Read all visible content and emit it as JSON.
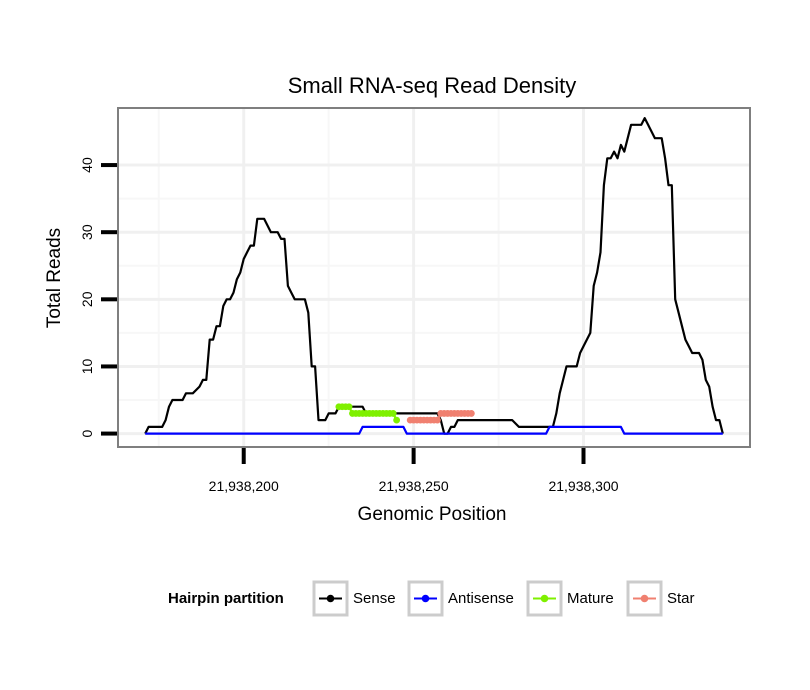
{
  "chart_data": {
    "type": "line",
    "title": "Small RNA-seq Read Density",
    "xlabel": "Genomic Position",
    "ylabel": "Total Reads",
    "xlim": [
      21938163,
      21938349
    ],
    "ylim": [
      -2,
      48.5
    ],
    "x_ticks": [
      {
        "value": 21938200,
        "label": "21,938,200"
      },
      {
        "value": 21938250,
        "label": "21,938,250"
      },
      {
        "value": 21938300,
        "label": "21,938,300"
      }
    ],
    "y_ticks": [
      {
        "value": 0,
        "label": "0"
      },
      {
        "value": 10,
        "label": "10"
      },
      {
        "value": 20,
        "label": "20"
      },
      {
        "value": 30,
        "label": "30"
      },
      {
        "value": 40,
        "label": "40"
      }
    ],
    "grid": true,
    "legend": {
      "title": "Hairpin partition",
      "position": "bottom"
    },
    "series": [
      {
        "name": "Sense",
        "color": "#000000",
        "marker": false,
        "points": [
          [
            21938171,
            0
          ],
          [
            21938172,
            1
          ],
          [
            21938176,
            1
          ],
          [
            21938177,
            2
          ],
          [
            21938178,
            4
          ],
          [
            21938179,
            5
          ],
          [
            21938182,
            5
          ],
          [
            21938183,
            6
          ],
          [
            21938185,
            6
          ],
          [
            21938187,
            7
          ],
          [
            21938188,
            8
          ],
          [
            21938189,
            8
          ],
          [
            21938190,
            14
          ],
          [
            21938191,
            14
          ],
          [
            21938192,
            16
          ],
          [
            21938193,
            16
          ],
          [
            21938194,
            19
          ],
          [
            21938195,
            20
          ],
          [
            21938196,
            20
          ],
          [
            21938197,
            21
          ],
          [
            21938198,
            23
          ],
          [
            21938199,
            24
          ],
          [
            21938200,
            26
          ],
          [
            21938201,
            27
          ],
          [
            21938202,
            28
          ],
          [
            21938203,
            28
          ],
          [
            21938204,
            32
          ],
          [
            21938206,
            32
          ],
          [
            21938207,
            31
          ],
          [
            21938208,
            30
          ],
          [
            21938210,
            30
          ],
          [
            21938211,
            29
          ],
          [
            21938212,
            29
          ],
          [
            21938213,
            22
          ],
          [
            21938214,
            21
          ],
          [
            21938215,
            20
          ],
          [
            21938218,
            20
          ],
          [
            21938219,
            18
          ],
          [
            21938220,
            10
          ],
          [
            21938221,
            10
          ],
          [
            21938222,
            2
          ],
          [
            21938224,
            2
          ],
          [
            21938225,
            3
          ],
          [
            21938227,
            3
          ],
          [
            21938228,
            4
          ],
          [
            21938235,
            4
          ],
          [
            21938236,
            3
          ],
          [
            21938257,
            3
          ],
          [
            21938258,
            2
          ],
          [
            21938259,
            0
          ],
          [
            21938260,
            0
          ],
          [
            21938261,
            1
          ],
          [
            21938262,
            1
          ],
          [
            21938263,
            2
          ],
          [
            21938279,
            2
          ],
          [
            21938281,
            1
          ],
          [
            21938291,
            1
          ],
          [
            21938292,
            3
          ],
          [
            21938293,
            6
          ],
          [
            21938294,
            8
          ],
          [
            21938295,
            10
          ],
          [
            21938298,
            10
          ],
          [
            21938299,
            12
          ],
          [
            21938300,
            13
          ],
          [
            21938302,
            15
          ],
          [
            21938303,
            22
          ],
          [
            21938304,
            24
          ],
          [
            21938305,
            27
          ],
          [
            21938306,
            37
          ],
          [
            21938307,
            41
          ],
          [
            21938308,
            41
          ],
          [
            21938309,
            42
          ],
          [
            21938310,
            41
          ],
          [
            21938311,
            43
          ],
          [
            21938312,
            42
          ],
          [
            21938313,
            44
          ],
          [
            21938314,
            46
          ],
          [
            21938317,
            46
          ],
          [
            21938318,
            47
          ],
          [
            21938319,
            46
          ],
          [
            21938320,
            45
          ],
          [
            21938321,
            44
          ],
          [
            21938323,
            44
          ],
          [
            21938324,
            41
          ],
          [
            21938325,
            37
          ],
          [
            21938326,
            37
          ],
          [
            21938327,
            20
          ],
          [
            21938328,
            18
          ],
          [
            21938329,
            16
          ],
          [
            21938330,
            14
          ],
          [
            21938331,
            13
          ],
          [
            21938332,
            12
          ],
          [
            21938334,
            12
          ],
          [
            21938335,
            11
          ],
          [
            21938336,
            8
          ],
          [
            21938337,
            7
          ],
          [
            21938338,
            4
          ],
          [
            21938339,
            2
          ],
          [
            21938340,
            2
          ],
          [
            21938341,
            0
          ]
        ]
      },
      {
        "name": "Antisense",
        "color": "#0000ff",
        "marker": false,
        "points": [
          [
            21938171,
            0
          ],
          [
            21938234,
            0
          ],
          [
            21938235,
            1
          ],
          [
            21938247,
            1
          ],
          [
            21938248,
            0
          ],
          [
            21938289,
            0
          ],
          [
            21938290,
            1
          ],
          [
            21938311,
            1
          ],
          [
            21938312,
            0
          ],
          [
            21938341,
            0
          ]
        ]
      },
      {
        "name": "Mature",
        "color": "#7ff000",
        "marker": true,
        "points": [
          [
            21938228,
            4
          ],
          [
            21938229,
            4
          ],
          [
            21938230,
            4
          ],
          [
            21938231,
            4
          ],
          [
            21938232,
            3
          ],
          [
            21938233,
            3
          ],
          [
            21938234,
            3
          ],
          [
            21938235,
            3
          ],
          [
            21938236,
            3
          ],
          [
            21938237,
            3
          ],
          [
            21938238,
            3
          ],
          [
            21938239,
            3
          ],
          [
            21938240,
            3
          ],
          [
            21938241,
            3
          ],
          [
            21938242,
            3
          ],
          [
            21938243,
            3
          ],
          [
            21938244,
            3
          ],
          [
            21938245,
            2
          ]
        ]
      },
      {
        "name": "Star",
        "color": "#f08070",
        "marker": true,
        "points": [
          [
            21938249,
            2
          ],
          [
            21938250,
            2
          ],
          [
            21938251,
            2
          ],
          [
            21938252,
            2
          ],
          [
            21938253,
            2
          ],
          [
            21938254,
            2
          ],
          [
            21938255,
            2
          ],
          [
            21938256,
            2
          ],
          [
            21938257,
            2
          ],
          [
            21938258,
            3
          ],
          [
            21938259,
            3
          ],
          [
            21938260,
            3
          ],
          [
            21938261,
            3
          ],
          [
            21938262,
            3
          ],
          [
            21938263,
            3
          ],
          [
            21938264,
            3
          ],
          [
            21938265,
            3
          ],
          [
            21938266,
            3
          ],
          [
            21938267,
            3
          ]
        ]
      }
    ]
  }
}
